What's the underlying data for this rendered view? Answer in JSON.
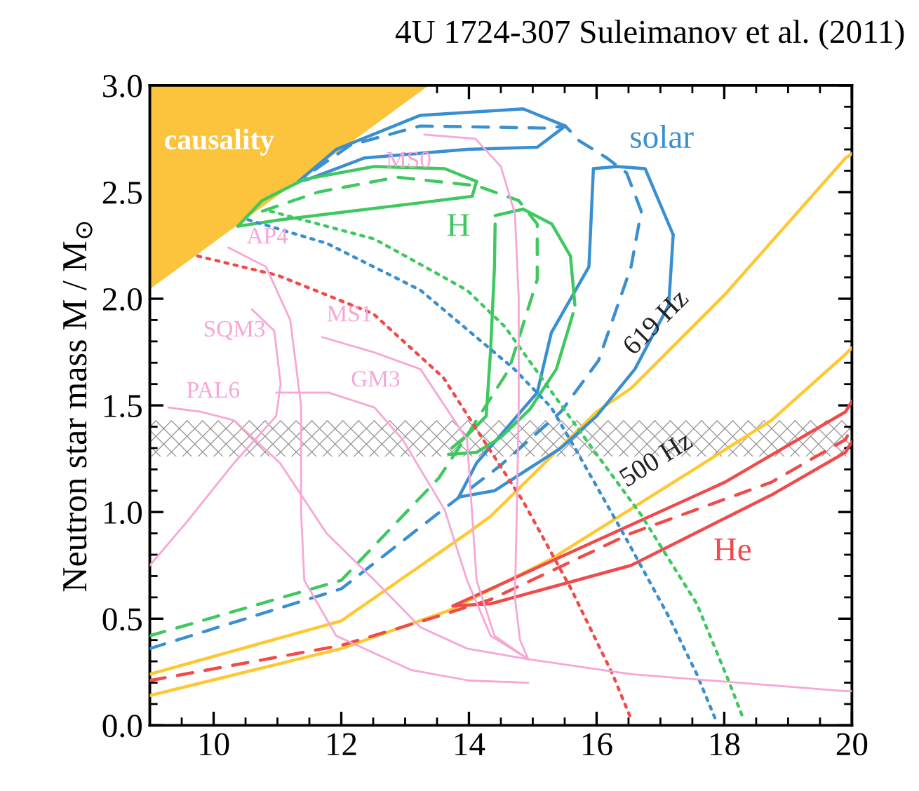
{
  "chart_data": {
    "type": "line",
    "title": "4U 1724-307 Suleimanov et al. (2011)",
    "ylabel": "Neutron star mass M / M$_{⊙}$",
    "xlim": [
      9,
      20
    ],
    "ylim": [
      0,
      3.0
    ],
    "xticks": [
      10,
      12,
      14,
      16,
      18,
      20
    ],
    "yticks": [
      {
        "value": 0,
        "label": "0.0"
      },
      0.5,
      {
        "value": 1,
        "label": "1.0"
      },
      1.5,
      {
        "value": 2,
        "label": "2.0"
      },
      2.5,
      {
        "value": 3,
        "label": "3.0"
      }
    ],
    "grid": false,
    "bands": [
      {
        "axis": "y",
        "from": 1.26,
        "to": 1.43,
        "color": "#999999"
      }
    ],
    "series": [
      {
        "type": "area",
        "name": "causality",
        "color": "#fcc43c",
        "x": [
          9,
          13.35
        ],
        "values": [
          2.05,
          3.0
        ]
      },
      {
        "name": "619 Hz",
        "color": "#ffc830",
        "line_style": "solid",
        "x": [
          9,
          12,
          13.97,
          14.34,
          16,
          16.54,
          18.01,
          19.9,
          20
        ],
        "values": [
          0.24,
          0.49,
          0.9,
          0.98,
          1.47,
          1.58,
          2.02,
          2.66,
          2.68
        ]
      },
      {
        "name": "500 Hz",
        "color": "#ffc830",
        "line_style": "solid",
        "x": [
          9,
          12,
          13.7,
          15.29,
          17.42,
          18.74,
          19.9,
          20
        ],
        "values": [
          0.14,
          0.36,
          0.54,
          0.78,
          1.18,
          1.43,
          1.74,
          1.77
        ]
      },
      {
        "name": "He",
        "color": "#f04a4a",
        "line_style": "dashed",
        "x": [
          9,
          12,
          13.5,
          14.34,
          16.54,
          18.74,
          19.9,
          20
        ],
        "values": [
          0.21,
          0.375,
          0.51,
          0.59,
          0.9,
          1.14,
          1.34,
          1.4
        ]
      },
      {
        "color": "#f04a4a",
        "line_style": "solid",
        "x": [
          13.75,
          14.34,
          15.44,
          18.01,
          19.9,
          20
        ],
        "values": [
          0.56,
          0.64,
          0.79,
          1.14,
          1.47,
          1.52
        ]
      },
      {
        "color": "#f04a4a",
        "line_style": "solid",
        "x": [
          13.75,
          14.34,
          16.54,
          18.74,
          19.9,
          20
        ],
        "values": [
          0.56,
          0.57,
          0.75,
          1.08,
          1.28,
          1.33
        ]
      },
      {
        "name": "solar",
        "color": "#3a8fd0",
        "line_style": "dashed",
        "x": [
          9,
          12,
          13.5,
          14.5,
          15.44,
          16.03,
          16.54,
          16.7,
          16.47,
          16.16,
          15.73,
          15.51,
          15.22,
          13.24,
          12.14,
          11.42
        ],
        "values": [
          0.36,
          0.64,
          0.99,
          1.22,
          1.47,
          1.71,
          2.15,
          2.41,
          2.59,
          2.66,
          2.74,
          2.81,
          2.8,
          2.81,
          2.72,
          2.57
        ]
      },
      {
        "color": "#3a8fd0",
        "line_style": "solid",
        "x": [
          11.33,
          11.92,
          13.24,
          14.85,
          15.51
        ],
        "values": [
          2.55,
          2.7,
          2.86,
          2.89,
          2.81
        ]
      },
      {
        "color": "#3a8fd0",
        "line_style": "solid",
        "x": [
          11.33,
          11.48,
          12.36,
          13.97,
          15.07,
          15.51
        ],
        "values": [
          2.55,
          2.56,
          2.66,
          2.7,
          2.71,
          2.81
        ]
      },
      {
        "color": "#3a8fd0",
        "line_style": "solid",
        "x": [
          15.95,
          16.32,
          16.76,
          17.2
        ],
        "values": [
          2.61,
          2.62,
          2.61,
          2.3
        ]
      },
      {
        "color": "#3a8fd0",
        "line_style": "solid",
        "x": [
          13.84,
          14.4,
          15.44,
          16.0,
          16.6,
          17.13,
          17.2
        ],
        "values": [
          1.07,
          1.1,
          1.3,
          1.45,
          1.67,
          1.97,
          2.3
        ]
      },
      {
        "color": "#3a8fd0",
        "line_style": "solid",
        "x": [
          13.84,
          14.12,
          15.07,
          15.29,
          15.88,
          15.95
        ],
        "values": [
          1.07,
          1.23,
          1.56,
          1.84,
          2.15,
          2.61
        ]
      },
      {
        "name": "H",
        "color": "#40c860",
        "line_style": "dashed",
        "x": [
          9,
          12,
          13.53,
          13.97,
          14.63,
          15.07,
          15.07,
          14.78,
          14.12,
          12.87,
          11.64,
          10.76
        ],
        "values": [
          0.42,
          0.68,
          1.16,
          1.36,
          1.67,
          2.09,
          2.35,
          2.46,
          2.53,
          2.57,
          2.5,
          2.41
        ]
      },
      {
        "color": "#40c860",
        "line_style": "solid",
        "x": [
          10.38,
          10.76,
          11.42,
          12.52,
          13.62,
          14.12
        ],
        "values": [
          2.34,
          2.46,
          2.56,
          2.62,
          2.61,
          2.55
        ]
      },
      {
        "color": "#40c860",
        "line_style": "solid",
        "x": [
          10.38,
          11.04,
          12.14,
          13.24,
          14.05,
          14.12
        ],
        "values": [
          2.34,
          2.37,
          2.41,
          2.45,
          2.48,
          2.55
        ]
      },
      {
        "color": "#40c860",
        "line_style": "solid",
        "x": [
          14.41,
          14.85,
          15.3,
          15.59,
          15.66
        ],
        "values": [
          2.39,
          2.42,
          2.35,
          2.2,
          1.97
        ]
      },
      {
        "color": "#40c860",
        "line_style": "solid",
        "x": [
          13.68,
          14.12,
          14.5,
          14.95,
          15.37,
          15.63
        ],
        "values": [
          1.27,
          1.28,
          1.35,
          1.48,
          1.67,
          1.93
        ]
      },
      {
        "color": "#40c860",
        "line_style": "solid",
        "x": [
          13.73,
          13.97,
          14.27,
          14.34,
          14.4,
          14.41
        ],
        "values": [
          1.3,
          1.36,
          1.45,
          1.76,
          2.15,
          2.35
        ]
      },
      {
        "color": "#f04a4a",
        "line_style": "dotted",
        "x": [
          9.75,
          11.0,
          12.5,
          13.6,
          14.2,
          14.85,
          15.6,
          16.25,
          16.54
        ],
        "values": [
          2.2,
          2.11,
          1.93,
          1.63,
          1.35,
          1.05,
          0.64,
          0.24,
          0.03
        ]
      },
      {
        "color": "#3a8fd0",
        "line_style": "dotted",
        "x": [
          10.54,
          11.77,
          13.24,
          14.71,
          15.29,
          15.66,
          16.38,
          17.13,
          17.57,
          17.86
        ],
        "values": [
          2.37,
          2.26,
          2.04,
          1.67,
          1.49,
          1.3,
          0.92,
          0.51,
          0.24,
          0.03
        ]
      },
      {
        "color": "#40c860",
        "line_style": "dotted",
        "x": [
          10.89,
          12.52,
          13.97,
          14.56,
          15.88,
          16.69,
          17.57,
          18.08,
          18.3
        ],
        "values": [
          2.41,
          2.28,
          2.04,
          1.87,
          1.32,
          0.99,
          0.57,
          0.2,
          0.03
        ]
      },
      {
        "name": "MS0",
        "color": "#f7a6d6",
        "line_style": "solid",
        "x": [
          13.3,
          14.1,
          14.5,
          14.72,
          14.78,
          14.78,
          14.75,
          14.72,
          14.8,
          14.93,
          16.54,
          19.9,
          20
        ],
        "values": [
          2.77,
          2.75,
          2.62,
          2.4,
          2.0,
          1.5,
          1.0,
          0.6,
          0.4,
          0.31,
          0.24,
          0.16,
          0.16
        ]
      },
      {
        "name": "AP4",
        "color": "#f7a6d6",
        "line_style": "solid",
        "x": [
          10.23,
          10.82,
          11.2,
          11.37,
          11.37,
          11.42,
          11.92,
          13.09,
          14.0,
          14.93
        ],
        "values": [
          2.24,
          2.15,
          1.9,
          1.5,
          1.0,
          0.68,
          0.42,
          0.26,
          0.21,
          0.2
        ]
      },
      {
        "name": "SQM3",
        "color": "#f7a6d6",
        "line_style": "solid",
        "x": [
          10.6,
          10.95,
          11.05,
          10.98,
          10.32,
          9.57,
          9.0
        ],
        "values": [
          1.95,
          1.85,
          1.6,
          1.45,
          1.23,
          0.95,
          0.75
        ]
      },
      {
        "name": "MS1",
        "color": "#f7a6d6",
        "line_style": "solid",
        "x": [
          11.7,
          12.5,
          13.24,
          13.97,
          14.12,
          14.4,
          14.93
        ],
        "values": [
          1.82,
          1.75,
          1.67,
          1.34,
          0.68,
          0.42,
          0.31
        ]
      },
      {
        "name": "GM3",
        "color": "#f7a6d6",
        "line_style": "solid",
        "x": [
          10.98,
          11.8,
          12.52,
          12.96,
          13.62,
          13.97,
          14.34,
          14.93
        ],
        "values": [
          1.56,
          1.56,
          1.49,
          1.34,
          1.01,
          0.68,
          0.42,
          0.31
        ]
      },
      {
        "name": "PAL6",
        "color": "#f7a6d6",
        "line_style": "solid",
        "x": [
          9.29,
          9.8,
          10.32,
          11.04,
          11.77,
          12.52,
          13.24,
          13.97,
          14.93
        ],
        "values": [
          1.49,
          1.47,
          1.43,
          1.23,
          0.9,
          0.68,
          0.46,
          0.36,
          0.31
        ]
      }
    ]
  }
}
